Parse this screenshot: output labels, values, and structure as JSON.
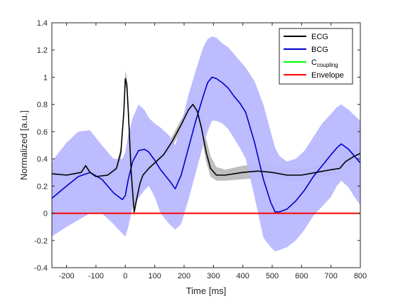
{
  "chart_data": {
    "type": "line",
    "xlabel": "Time [ms]",
    "ylabel": "Normalized [a.u.]",
    "xlim": [
      -250,
      800
    ],
    "ylim": [
      -0.4,
      1.4
    ],
    "xticks": [
      -200,
      -100,
      0,
      100,
      200,
      300,
      400,
      500,
      600,
      700,
      800
    ],
    "yticks": [
      -0.4,
      -0.2,
      0,
      0.2,
      0.4,
      0.6,
      0.8,
      1,
      1.2,
      1.4
    ],
    "xtick_labels": [
      "-200",
      "-100",
      "0",
      "100",
      "200",
      "300",
      "400",
      "500",
      "600",
      "700",
      "800"
    ],
    "ytick_labels": [
      "-0.4",
      "-0.2",
      "0",
      "0.2",
      "0.4",
      "0.6",
      "0.8",
      "1",
      "1.2",
      "1.4"
    ],
    "grid": false,
    "legend_position": "top-right",
    "legend": [
      {
        "label": "ECG",
        "color": "#000000"
      },
      {
        "label": "BCG",
        "color": "#0000cc"
      },
      {
        "label": "C",
        "subscript": "coupling",
        "color": "#00ff00"
      },
      {
        "label": "Envelope",
        "color": "#ff0000"
      }
    ],
    "series": [
      {
        "name": "ECG",
        "color": "#000000",
        "x": [
          -250,
          -200,
          -150,
          -135,
          -120,
          -100,
          -60,
          -30,
          -15,
          -5,
          0,
          5,
          10,
          20,
          30,
          40,
          50,
          60,
          80,
          100,
          130,
          160,
          190,
          215,
          230,
          245,
          260,
          275,
          290,
          310,
          340,
          400,
          450,
          500,
          550,
          600,
          650,
          700,
          730,
          750,
          780,
          800
        ],
        "y": [
          0.29,
          0.28,
          0.3,
          0.35,
          0.3,
          0.27,
          0.28,
          0.33,
          0.45,
          0.75,
          0.99,
          0.95,
          0.75,
          0.3,
          0.01,
          0.12,
          0.22,
          0.28,
          0.33,
          0.37,
          0.43,
          0.53,
          0.65,
          0.76,
          0.8,
          0.75,
          0.62,
          0.45,
          0.33,
          0.28,
          0.28,
          0.3,
          0.31,
          0.3,
          0.28,
          0.28,
          0.3,
          0.32,
          0.33,
          0.38,
          0.42,
          0.44
        ]
      },
      {
        "name": "ECG-band",
        "color": "#888888",
        "x": [
          -250,
          -200,
          -150,
          -135,
          -120,
          -100,
          -60,
          -30,
          -15,
          -5,
          0,
          5,
          10,
          20,
          30,
          40,
          50,
          60,
          80,
          100,
          130,
          160,
          190,
          215,
          230,
          245,
          260,
          275,
          290,
          310,
          340,
          400,
          450,
          500,
          550,
          600,
          650,
          700,
          730,
          750,
          780,
          800
        ],
        "upper": [
          0.32,
          0.31,
          0.33,
          0.4,
          0.33,
          0.3,
          0.31,
          0.36,
          0.49,
          0.79,
          1.05,
          1.0,
          0.8,
          0.34,
          0.05,
          0.15,
          0.25,
          0.31,
          0.36,
          0.4,
          0.46,
          0.57,
          0.69,
          0.8,
          0.84,
          0.81,
          0.7,
          0.55,
          0.42,
          0.34,
          0.32,
          0.35,
          0.36,
          0.35,
          0.33,
          0.33,
          0.35,
          0.37,
          0.4,
          0.46,
          0.48,
          0.49
        ],
        "lower": [
          0.26,
          0.25,
          0.27,
          0.3,
          0.27,
          0.24,
          0.25,
          0.3,
          0.41,
          0.71,
          0.94,
          0.9,
          0.7,
          0.26,
          -0.03,
          0.09,
          0.19,
          0.25,
          0.3,
          0.34,
          0.4,
          0.49,
          0.61,
          0.72,
          0.76,
          0.7,
          0.56,
          0.38,
          0.27,
          0.24,
          0.24,
          0.25,
          0.26,
          0.25,
          0.24,
          0.24,
          0.26,
          0.28,
          0.28,
          0.31,
          0.36,
          0.39
        ]
      },
      {
        "name": "BCG",
        "color": "#0000cc",
        "x": [
          -250,
          -200,
          -160,
          -120,
          -80,
          -40,
          -10,
          0,
          10,
          25,
          45,
          65,
          80,
          100,
          120,
          150,
          170,
          190,
          215,
          240,
          265,
          280,
          295,
          310,
          330,
          350,
          370,
          390,
          410,
          440,
          470,
          495,
          510,
          525,
          550,
          580,
          610,
          640,
          670,
          700,
          720,
          735,
          760,
          780,
          800
        ],
        "y": [
          0.11,
          0.2,
          0.27,
          0.3,
          0.25,
          0.15,
          0.1,
          0.13,
          0.25,
          0.38,
          0.46,
          0.47,
          0.45,
          0.39,
          0.32,
          0.24,
          0.18,
          0.28,
          0.48,
          0.68,
          0.86,
          0.96,
          1.0,
          0.99,
          0.96,
          0.92,
          0.86,
          0.81,
          0.74,
          0.52,
          0.25,
          0.08,
          0.01,
          0.01,
          0.03,
          0.09,
          0.17,
          0.27,
          0.35,
          0.43,
          0.48,
          0.51,
          0.47,
          0.42,
          0.37
        ]
      },
      {
        "name": "BCG-band",
        "color": "#b8b8ff",
        "x": [
          -250,
          -200,
          -160,
          -120,
          -80,
          -40,
          -10,
          0,
          10,
          25,
          45,
          65,
          80,
          100,
          120,
          150,
          170,
          190,
          215,
          240,
          265,
          280,
          295,
          310,
          330,
          350,
          370,
          390,
          410,
          440,
          470,
          495,
          510,
          525,
          550,
          580,
          610,
          640,
          670,
          700,
          720,
          735,
          760,
          780,
          800
        ],
        "upper": [
          0.38,
          0.52,
          0.6,
          0.61,
          0.5,
          0.4,
          0.4,
          0.45,
          0.58,
          0.7,
          0.8,
          0.76,
          0.7,
          0.66,
          0.63,
          0.57,
          0.5,
          0.65,
          0.87,
          1.05,
          1.22,
          1.28,
          1.3,
          1.29,
          1.25,
          1.22,
          1.17,
          1.12,
          1.07,
          0.97,
          0.8,
          0.6,
          0.48,
          0.42,
          0.38,
          0.4,
          0.46,
          0.56,
          0.66,
          0.73,
          0.78,
          0.8,
          0.76,
          0.72,
          0.68
        ],
        "lower": [
          -0.17,
          -0.1,
          -0.05,
          0.0,
          0.0,
          -0.08,
          -0.15,
          -0.17,
          -0.1,
          0.05,
          0.11,
          0.17,
          0.2,
          0.12,
          0.0,
          -0.08,
          -0.12,
          -0.08,
          0.1,
          0.3,
          0.5,
          0.6,
          0.68,
          0.68,
          0.66,
          0.62,
          0.55,
          0.48,
          0.4,
          0.12,
          -0.18,
          -0.25,
          -0.28,
          -0.27,
          -0.25,
          -0.2,
          -0.12,
          -0.02,
          0.05,
          0.12,
          0.2,
          0.24,
          0.19,
          0.12,
          0.06
        ]
      },
      {
        "name": "Envelope",
        "color": "#ff0000",
        "x": [
          -250,
          800
        ],
        "y": [
          0,
          0
        ]
      }
    ]
  }
}
